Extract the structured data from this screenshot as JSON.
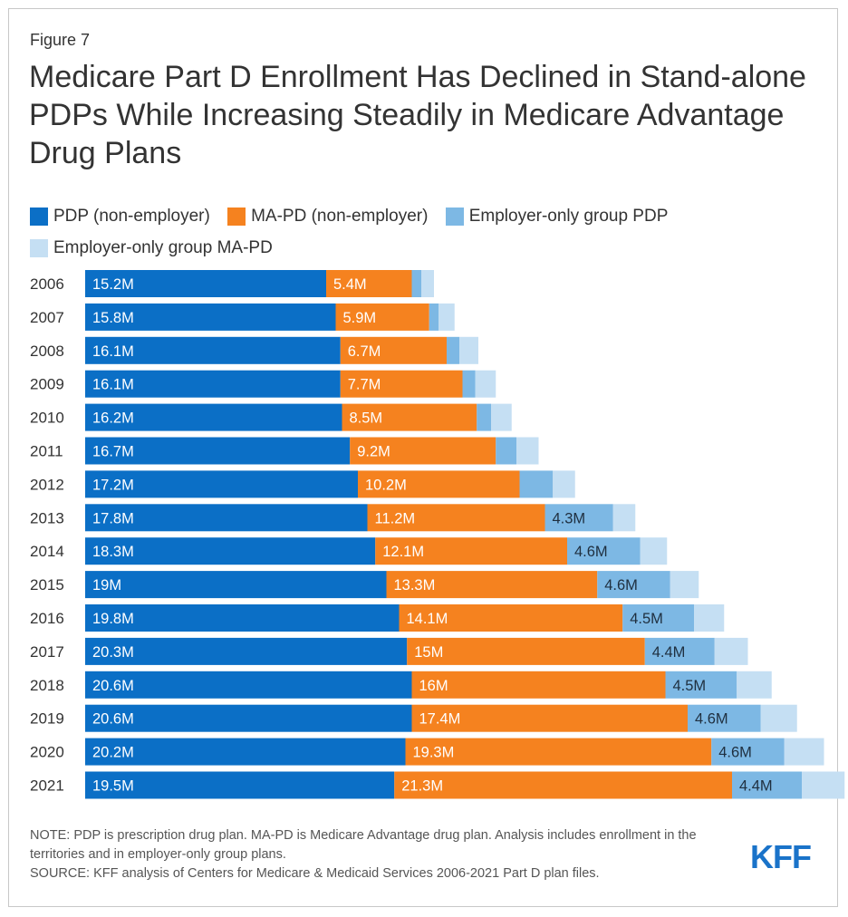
{
  "figure_label": "Figure 7",
  "title": "Medicare Part D Enrollment Has Declined in Stand-alone PDPs While Increasing Steadily in Medicare Advantage Drug Plans",
  "legend": [
    {
      "label": "PDP (non-employer)",
      "color": "#0b6fc6"
    },
    {
      "label": "MA-PD (non-employer)",
      "color": "#f5821f"
    },
    {
      "label": "Employer-only group PDP",
      "color": "#7db8e4"
    },
    {
      "label": "Employer-only group MA-PD",
      "color": "#c5dff3"
    }
  ],
  "notes": {
    "note": "NOTE: PDP is prescription drug plan. MA-PD is Medicare Advantage drug plan. Analysis includes enrollment in the territories and in employer-only group plans.",
    "source": "SOURCE: KFF analysis of Centers for Medicare & Medicaid Services 2006-2021 Part D plan files."
  },
  "logo_text": "KFF",
  "chart_data": {
    "type": "bar",
    "orientation": "horizontal",
    "stacked": true,
    "categories": [
      "2006",
      "2007",
      "2008",
      "2009",
      "2010",
      "2011",
      "2012",
      "2013",
      "2014",
      "2015",
      "2016",
      "2017",
      "2018",
      "2019",
      "2020",
      "2021"
    ],
    "series": [
      {
        "name": "PDP (non-employer)",
        "color": "#0b6fc6",
        "values": [
          15.2,
          15.8,
          16.1,
          16.1,
          16.2,
          16.7,
          17.2,
          17.8,
          18.3,
          19,
          19.8,
          20.3,
          20.6,
          20.6,
          20.2,
          19.5
        ],
        "labels": [
          "15.2M",
          "15.8M",
          "16.1M",
          "16.1M",
          "16.2M",
          "16.7M",
          "17.2M",
          "17.8M",
          "18.3M",
          "19M",
          "19.8M",
          "20.3M",
          "20.6M",
          "20.6M",
          "20.2M",
          "19.5M"
        ]
      },
      {
        "name": "MA-PD (non-employer)",
        "color": "#f5821f",
        "values": [
          5.4,
          5.9,
          6.7,
          7.7,
          8.5,
          9.2,
          10.2,
          11.2,
          12.1,
          13.3,
          14.1,
          15,
          16,
          17.4,
          19.3,
          21.3
        ],
        "labels": [
          "5.4M",
          "5.9M",
          "6.7M",
          "7.7M",
          "8.5M",
          "9.2M",
          "10.2M",
          "11.2M",
          "12.1M",
          "13.3M",
          "14.1M",
          "15M",
          "16M",
          "17.4M",
          "19.3M",
          "21.3M"
        ]
      },
      {
        "name": "Employer-only group PDP",
        "color": "#7db8e4",
        "values": [
          0.6,
          0.6,
          0.8,
          0.8,
          0.9,
          1.3,
          2.1,
          4.3,
          4.6,
          4.6,
          4.5,
          4.4,
          4.5,
          4.6,
          4.6,
          4.4
        ],
        "labels": [
          "",
          "",
          "",
          "",
          "",
          "",
          "",
          "4.3M",
          "4.6M",
          "4.6M",
          "4.5M",
          "4.4M",
          "4.5M",
          "4.6M",
          "4.6M",
          "4.4M"
        ]
      },
      {
        "name": "Employer-only group MA-PD",
        "color": "#c5dff3",
        "values": [
          0.8,
          1.0,
          1.2,
          1.3,
          1.3,
          1.4,
          1.4,
          1.4,
          1.7,
          1.8,
          1.9,
          2.1,
          2.2,
          2.3,
          2.5,
          2.7
        ],
        "labels": [
          "",
          "",
          "",
          "",
          "",
          "",
          "",
          "",
          "",
          "",
          "",
          "",
          "",
          "",
          "",
          ""
        ]
      }
    ]
  }
}
